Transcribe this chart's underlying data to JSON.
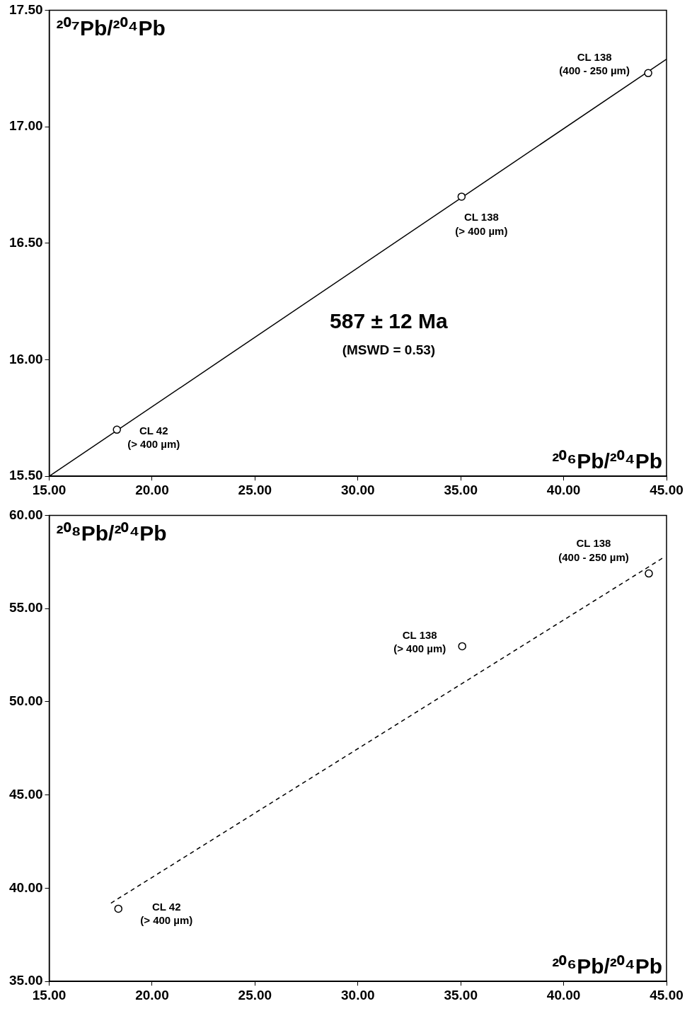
{
  "chart_data": [
    {
      "type": "scatter",
      "xlabel": "²⁰⁶Pb/²⁰⁴Pb",
      "ylabel": "²⁰⁷Pb/²⁰⁴Pb",
      "legend": false,
      "grid": false,
      "marker": "circle",
      "xlim": [
        15,
        45
      ],
      "ylim": [
        15.5,
        17.5
      ],
      "xticks": [
        {
          "value": 15,
          "label": "15.00"
        },
        {
          "value": 20,
          "label": "20.00"
        },
        {
          "value": 25,
          "label": "25.00"
        },
        {
          "value": 30,
          "label": "30.00"
        },
        {
          "value": 35,
          "label": "35.00"
        },
        {
          "value": 40,
          "label": "40.00"
        },
        {
          "value": 45,
          "label": "45.00"
        }
      ],
      "yticks": [
        {
          "value": 15.5,
          "label": "15.50"
        },
        {
          "value": 16,
          "label": "16.00"
        },
        {
          "value": 16.5,
          "label": "16.50"
        },
        {
          "value": 17,
          "label": "17.00"
        },
        {
          "value": 17.5,
          "label": "17.50"
        }
      ],
      "series": [
        {
          "type": "scatter",
          "color": "#000000",
          "x": [
            18.29,
            35.04,
            44.11
          ],
          "values": [
            15.7,
            16.7,
            17.23
          ]
        },
        {
          "type": "line",
          "color": "#000000",
          "line_style": "solid",
          "marker": "none",
          "x": [
            15,
            45
          ],
          "values": [
            15.5,
            17.29
          ]
        }
      ],
      "annotations": [
        {
          "text": "CL 42\n(> 400 µm)",
          "x": 18.29,
          "y": 15.7
        },
        {
          "text": "CL 138\n(> 400 µm)",
          "x": 35.04,
          "y": 16.7
        },
        {
          "text": "CL 138\n(400 - 250 µm)",
          "x": 44.11,
          "y": 17.23
        },
        "587 ± 12 Ma",
        "(MSWD = 0.53)"
      ]
    },
    {
      "type": "scatter",
      "xlabel": "²⁰⁶Pb/²⁰⁴Pb",
      "ylabel": "²⁰⁸Pb/²⁰⁴Pb",
      "legend": false,
      "grid": false,
      "marker": "circle",
      "xlim": [
        15,
        45
      ],
      "ylim": [
        35,
        60
      ],
      "xticks": [
        {
          "value": 15,
          "label": "15.00"
        },
        {
          "value": 20,
          "label": "20.00"
        },
        {
          "value": 25,
          "label": "25.00"
        },
        {
          "value": 30,
          "label": "30.00"
        },
        {
          "value": 35,
          "label": "35.00"
        },
        {
          "value": 40,
          "label": "40.00"
        },
        {
          "value": 45,
          "label": "45.00"
        }
      ],
      "yticks": [
        {
          "value": 35,
          "label": "35.00"
        },
        {
          "value": 40,
          "label": "40.00"
        },
        {
          "value": 45,
          "label": "45.00"
        },
        {
          "value": 50,
          "label": "50.00"
        },
        {
          "value": 55,
          "label": "55.00"
        },
        {
          "value": 60,
          "label": "60.00"
        }
      ],
      "series": [
        {
          "type": "scatter",
          "color": "#000000",
          "x": [
            18.36,
            35.07,
            44.14
          ],
          "values": [
            38.9,
            52.98,
            56.88
          ]
        },
        {
          "type": "line",
          "color": "#000000",
          "line_style": "dashed",
          "marker": "none",
          "x": [
            18.0,
            44.8
          ],
          "values": [
            39.2,
            57.7
          ]
        }
      ],
      "annotations": [
        {
          "text": "CL 42\n(> 400 µm)",
          "x": 18.36,
          "y": 38.9
        },
        {
          "text": "CL 138\n(> 400 µm)",
          "x": 35.07,
          "y": 52.98
        },
        {
          "text": "CL 138\n(400 - 250 µm)",
          "x": 44.14,
          "y": 56.88
        }
      ]
    }
  ]
}
